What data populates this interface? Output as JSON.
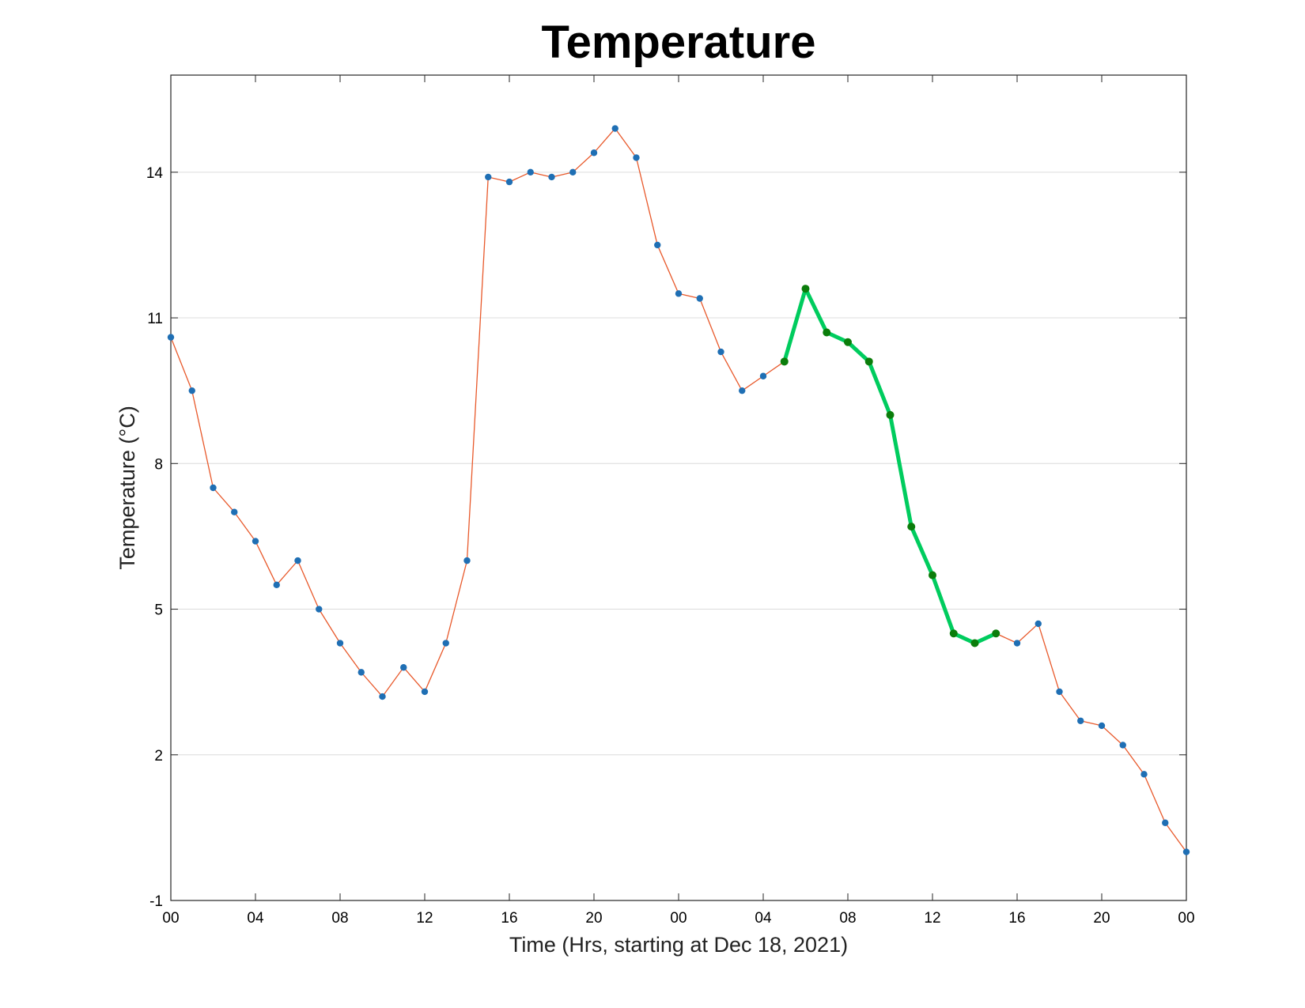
{
  "chart_data": {
    "type": "line",
    "title": "Temperature",
    "xlabel": "Time (Hrs, starting at Dec 18, 2021)",
    "ylabel": "Temperature (°C)",
    "x_unit": "hours",
    "xlim": [
      0,
      48
    ],
    "ylim": [
      -1,
      16
    ],
    "grid": "horizontal",
    "yticks": [
      -1,
      2,
      5,
      8,
      11,
      14
    ],
    "xticks": [
      {
        "hour": 0,
        "label": "00"
      },
      {
        "hour": 4,
        "label": "04"
      },
      {
        "hour": 8,
        "label": "08"
      },
      {
        "hour": 12,
        "label": "12"
      },
      {
        "hour": 16,
        "label": "16"
      },
      {
        "hour": 20,
        "label": "20"
      },
      {
        "hour": 24,
        "label": "00"
      },
      {
        "hour": 28,
        "label": "04"
      },
      {
        "hour": 32,
        "label": "08"
      },
      {
        "hour": 36,
        "label": "12"
      },
      {
        "hour": 40,
        "label": "16"
      },
      {
        "hour": 44,
        "label": "20"
      },
      {
        "hour": 48,
        "label": "00"
      }
    ],
    "x": [
      0,
      1,
      2,
      3,
      4,
      5,
      6,
      7,
      8,
      9,
      10,
      11,
      12,
      13,
      14,
      15,
      16,
      17,
      18,
      19,
      20,
      21,
      22,
      23,
      24,
      25,
      26,
      27,
      28,
      29,
      30,
      31,
      32,
      33,
      34,
      35,
      36,
      37,
      38,
      39,
      40,
      41,
      42,
      43,
      44,
      45,
      46,
      47,
      48
    ],
    "series": [
      {
        "values": [
          10.6,
          9.5,
          7.5,
          7.0,
          6.4,
          5.5,
          6.0,
          5.0,
          4.3,
          3.7,
          3.2,
          3.8,
          3.3,
          4.3,
          6.0,
          13.9,
          13.8,
          14.0,
          13.9,
          14.0,
          14.4,
          14.9,
          14.3,
          12.5,
          11.5,
          11.4,
          10.3,
          9.5,
          9.8,
          10.1,
          11.6,
          10.7,
          10.5,
          10.1,
          9.0,
          6.7,
          5.7,
          4.5,
          4.3,
          4.5,
          4.3,
          4.7,
          3.3,
          2.7,
          2.6,
          2.2,
          1.6,
          0.6,
          0.0
        ],
        "line_color": "#e8592b",
        "marker_color": "#1f6fb4"
      },
      {
        "x": [
          29,
          30,
          31,
          32,
          33,
          34,
          35,
          36,
          37,
          38,
          39
        ],
        "values": [
          10.1,
          11.6,
          10.7,
          10.5,
          10.1,
          9.0,
          6.7,
          5.7,
          4.5,
          4.3,
          4.5
        ],
        "line_color": "#00cc5e",
        "marker_color": "#0b7d0b"
      }
    ]
  }
}
